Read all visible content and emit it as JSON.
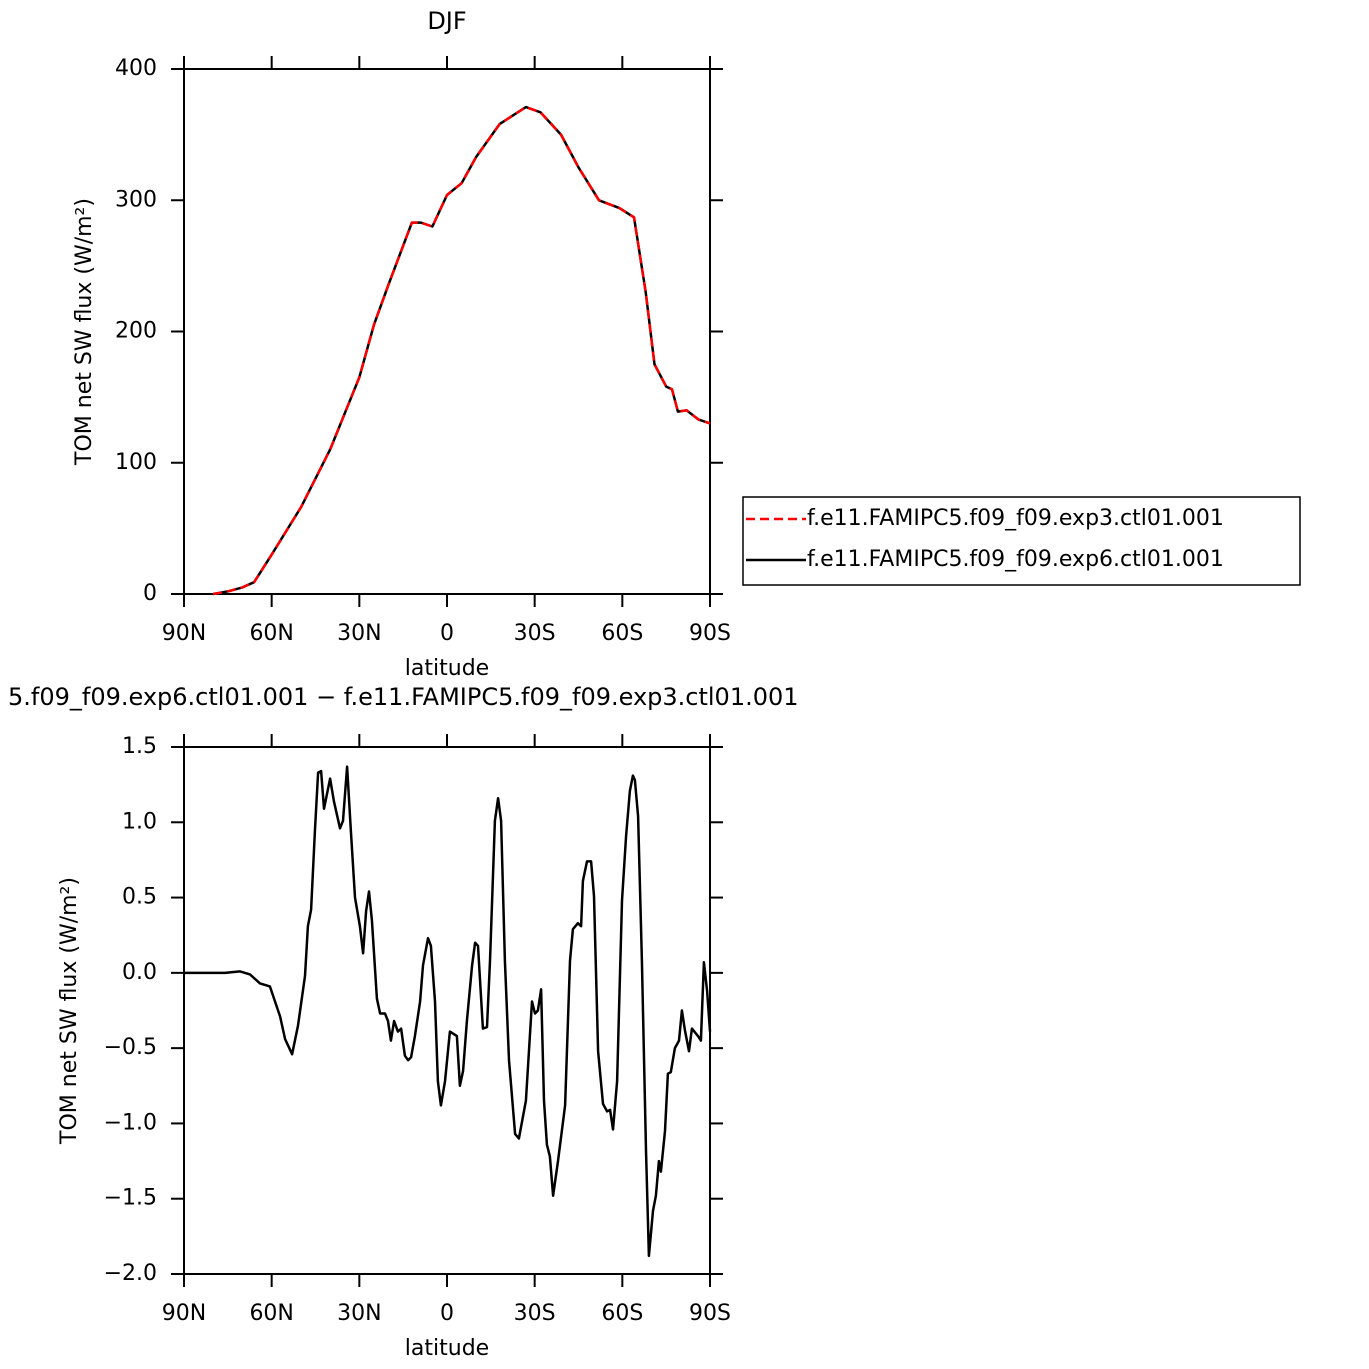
{
  "chart_data": [
    {
      "type": "line",
      "title": "DJF",
      "xlabel": "latitude",
      "ylabel": "TOM net SW flux (W/m²)",
      "x": [
        80,
        75,
        70,
        66,
        60,
        50,
        40,
        30,
        25,
        20,
        12,
        9,
        5,
        0,
        -5,
        -10,
        -18,
        -27,
        -32,
        -39,
        -45,
        -52,
        -59,
        -64,
        -68,
        -71,
        -75,
        -77,
        -79,
        -82,
        -86,
        -90
      ],
      "series": [
        {
          "name": "f.e11.FAMIPC5.f09_f09.exp3.ctl01.001",
          "color": "#ff0000",
          "dashed": true,
          "values": [
            0,
            2,
            5,
            9,
            30,
            66,
            110,
            165,
            205,
            236,
            283,
            283,
            280,
            304,
            313,
            333,
            358,
            371,
            367,
            350,
            325,
            300,
            294,
            287,
            230,
            175,
            158,
            156,
            139,
            140,
            133,
            130
          ]
        },
        {
          "name": "f.e11.FAMIPC5.f09_f09.exp6.ctl01.001",
          "color": "#000000",
          "dashed": false,
          "values": [
            0,
            2,
            5,
            9,
            30,
            66,
            110,
            165,
            205,
            236,
            283,
            283,
            280,
            304,
            313,
            333,
            358,
            371,
            367,
            350,
            325,
            300,
            294,
            287,
            230,
            175,
            158,
            156,
            139,
            140,
            133,
            130
          ]
        }
      ],
      "xlim": [
        90,
        -90
      ],
      "xticks": [
        {
          "value": 90,
          "label": "90N"
        },
        {
          "value": 60,
          "label": "60N"
        },
        {
          "value": 30,
          "label": "30N"
        },
        0,
        {
          "value": -30,
          "label": "30S"
        },
        {
          "value": -60,
          "label": "60S"
        },
        {
          "value": -90,
          "label": "90S"
        }
      ],
      "ylim": [
        0,
        400
      ],
      "yticks": [
        0,
        100,
        200,
        300,
        400
      ],
      "legend": "right"
    },
    {
      "type": "line",
      "title": "5.f09_f09.exp6.ctl01.001 − f.e11.FAMIPC5.f09_f09.exp3.ctl01.001",
      "xlabel": "latitude",
      "ylabel": "TOM net SW flux (W/m²)",
      "x": [
        90,
        76.0,
        70.8,
        67.4,
        64.0,
        60.6,
        57.1,
        55.4,
        53.0,
        51.0,
        48.6,
        47.6,
        46.5,
        45.2,
        44.1,
        43.1,
        42.1,
        40.0,
        38.7,
        36.6,
        35.6,
        34.2,
        32.9,
        31.5,
        29.8,
        28.7,
        27.7,
        26.7,
        25.7,
        24.0,
        22.9,
        21.2,
        20.2,
        19.2,
        18.1,
        16.8,
        15.7,
        14.4,
        13.3,
        12.3,
        11.0,
        9.2,
        8.2,
        6.5,
        5.5,
        4.1,
        3.1,
        2.1,
        0.7,
        -1.0,
        -3.4,
        -4.4,
        -5.5,
        -6.8,
        -8.6,
        -9.6,
        -10.6,
        -12.3,
        -13.7,
        -14.7,
        -16.4,
        -17.5,
        -18.5,
        -19.8,
        -21.2,
        -23.3,
        -24.6,
        -27.0,
        -29.1,
        -30.1,
        -31.1,
        -32.2,
        -33.2,
        -34.2,
        -35.2,
        -36.3,
        -38.0,
        -40.4,
        -42.1,
        -43.1,
        -44.8,
        -45.9,
        -46.5,
        -47.9,
        -49.3,
        -50.3,
        -51.7,
        -53.4,
        -54.8,
        -55.8,
        -56.8,
        -58.2,
        -59.9,
        -61.3,
        -62.6,
        -63.6,
        -64.3,
        -65.4,
        -66.7,
        -68.1,
        -69.1,
        -70.5,
        -71.5,
        -72.5,
        -73.2,
        -74.6,
        -75.6,
        -76.6,
        -78.0,
        -79.4,
        -80.4,
        -81.4,
        -82.8,
        -83.8,
        -85.9,
        -86.9,
        -87.9,
        -89.0,
        -90
      ],
      "series": [
        {
          "color": "#000000",
          "values": [
            0,
            0,
            0.01,
            -0.01,
            -0.07,
            -0.09,
            -0.29,
            -0.44,
            -0.54,
            -0.35,
            -0.02,
            0.31,
            0.42,
            0.94,
            1.33,
            1.34,
            1.09,
            1.29,
            1.14,
            0.96,
            1.01,
            1.37,
            0.94,
            0.5,
            0.31,
            0.13,
            0.41,
            0.54,
            0.35,
            -0.17,
            -0.27,
            -0.27,
            -0.32,
            -0.45,
            -0.32,
            -0.39,
            -0.37,
            -0.55,
            -0.58,
            -0.56,
            -0.42,
            -0.19,
            0.05,
            0.23,
            0.18,
            -0.19,
            -0.72,
            -0.88,
            -0.72,
            -0.39,
            -0.42,
            -0.75,
            -0.65,
            -0.32,
            0.05,
            0.2,
            0.18,
            -0.37,
            -0.36,
            0.08,
            1.01,
            1.16,
            1.01,
            0.08,
            -0.58,
            -1.07,
            -1.1,
            -0.85,
            -0.19,
            -0.27,
            -0.25,
            -0.11,
            -0.85,
            -1.14,
            -1.22,
            -1.48,
            -1.25,
            -0.88,
            0.08,
            0.29,
            0.33,
            0.31,
            0.61,
            0.74,
            0.74,
            0.51,
            -0.52,
            -0.87,
            -0.92,
            -0.91,
            -1.04,
            -0.72,
            0.48,
            0.91,
            1.21,
            1.31,
            1.28,
            1.04,
            0.08,
            -1.18,
            -1.88,
            -1.58,
            -1.48,
            -1.25,
            -1.32,
            -1.05,
            -0.67,
            -0.66,
            -0.5,
            -0.45,
            -0.25,
            -0.38,
            -0.52,
            -0.37,
            -0.42,
            -0.45,
            0.07,
            -0.12,
            -0.39
          ]
        }
      ],
      "xlim": [
        90,
        -90
      ],
      "xticks": [
        {
          "value": 90,
          "label": "90N"
        },
        {
          "value": 60,
          "label": "60N"
        },
        {
          "value": 30,
          "label": "30N"
        },
        0,
        {
          "value": -30,
          "label": "30S"
        },
        {
          "value": -60,
          "label": "60S"
        },
        {
          "value": -90,
          "label": "90S"
        }
      ],
      "ylim": [
        -2,
        1.5
      ],
      "yticks": [
        {
          "value": -2,
          "label": "−2.0"
        },
        {
          "value": -1.5,
          "label": "−1.5"
        },
        {
          "value": -1,
          "label": "−1.0"
        },
        {
          "value": -0.5,
          "label": "−0.5"
        },
        {
          "value": 0,
          "label": "0.0"
        },
        0.5,
        {
          "value": 1,
          "label": "1.0"
        },
        1.5
      ]
    }
  ]
}
